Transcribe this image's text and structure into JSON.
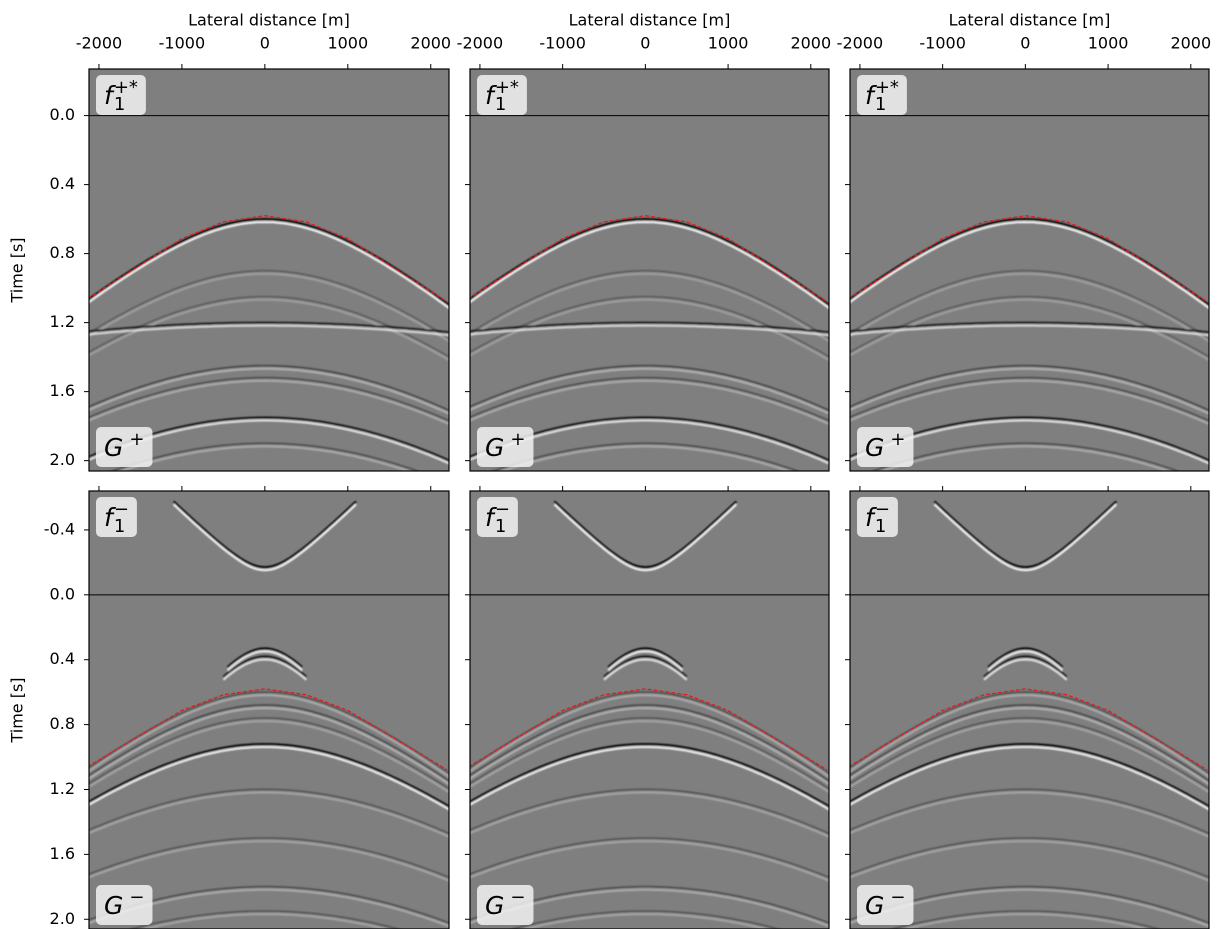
{
  "chart_data": [
    {
      "type": "image",
      "xlabel": "Lateral distance [m]",
      "ylabel": "Time [s]",
      "show_xticklabels": true,
      "show_yticklabels": true,
      "xlim": [
        -2120,
        2220
      ],
      "xticks": [
        -2000,
        -1000,
        0,
        1000,
        2000
      ],
      "ylim": [
        -0.27,
        2.06
      ],
      "y_inverted": true,
      "yticks": [
        {
          "value": 0,
          "label": "0.0"
        },
        0.4,
        0.8,
        1.2,
        1.6,
        {
          "value": 2,
          "label": "2.0"
        }
      ],
      "hline": 0,
      "panel_labels": [
        {
          "base": "f",
          "sub": "1",
          "sup": "+*"
        },
        {
          "base": "G",
          "sup": "+"
        }
      ],
      "reference_line": {
        "x": [
          -2200,
          -1000,
          -500,
          0,
          500,
          1000,
          2200
        ],
        "y": [
          1.08,
          0.713,
          0.616,
          0.58,
          0.616,
          0.713,
          1.08
        ],
        "color": "#e41a1c",
        "dashed": true
      }
    },
    {
      "type": "image",
      "xlabel": "Lateral distance [m]",
      "show_xticklabels": true,
      "show_yticklabels": false,
      "xlim": [
        -2120,
        2220
      ],
      "xticks": [
        -2000,
        -1000,
        0,
        1000,
        2000
      ],
      "ylim": [
        -0.27,
        2.06
      ],
      "y_inverted": true,
      "yticks": [
        0,
        0.4,
        0.8,
        1.2,
        1.6,
        2
      ],
      "hline": 0,
      "panel_labels": [
        {
          "base": "f",
          "sub": "1",
          "sup": "+*"
        },
        {
          "base": "G",
          "sup": "+"
        }
      ],
      "reference_line": {
        "x": [
          -2200,
          -1000,
          -500,
          0,
          500,
          1000,
          2200
        ],
        "y": [
          1.08,
          0.713,
          0.616,
          0.58,
          0.616,
          0.713,
          1.08
        ],
        "color": "#e41a1c",
        "dashed": true
      }
    },
    {
      "type": "image",
      "xlabel": "Lateral distance [m]",
      "show_xticklabels": true,
      "show_yticklabels": false,
      "xlim": [
        -2120,
        2220
      ],
      "xticks": [
        -2000,
        -1000,
        0,
        1000,
        2000
      ],
      "ylim": [
        -0.27,
        2.06
      ],
      "y_inverted": true,
      "yticks": [
        0,
        0.4,
        0.8,
        1.2,
        1.6,
        2
      ],
      "hline": 0,
      "panel_labels": [
        {
          "base": "f",
          "sub": "1",
          "sup": "+*"
        },
        {
          "base": "G",
          "sup": "+"
        }
      ],
      "reference_line": {
        "x": [
          -2200,
          -1000,
          -500,
          0,
          500,
          1000,
          2200
        ],
        "y": [
          1.08,
          0.713,
          0.616,
          0.58,
          0.616,
          0.713,
          1.08
        ],
        "color": "#e41a1c",
        "dashed": true
      }
    },
    {
      "type": "image",
      "ylabel": "Time [s]",
      "show_xticklabels": false,
      "show_yticklabels": true,
      "xlim": [
        -2120,
        2220
      ],
      "xticks": [
        -2000,
        -1000,
        0,
        1000,
        2000
      ],
      "ylim": [
        -0.64,
        2.06
      ],
      "y_inverted": true,
      "yticks": [
        -0.4,
        {
          "value": 0,
          "label": "0.0"
        },
        0.4,
        0.8,
        1.2,
        1.6,
        {
          "value": 2,
          "label": "2.0"
        }
      ],
      "hline": 0,
      "panel_labels": [
        {
          "base": "f",
          "sub": "1",
          "sup": "−"
        },
        {
          "base": "G",
          "sup": "−"
        }
      ],
      "reference_line": {
        "x": [
          -2200,
          -1000,
          -500,
          0,
          500,
          1000,
          2200
        ],
        "y": [
          1.08,
          0.713,
          0.616,
          0.58,
          0.616,
          0.713,
          1.08
        ],
        "color": "#e41a1c",
        "dashed": true
      }
    },
    {
      "type": "image",
      "show_xticklabels": false,
      "show_yticklabels": false,
      "xlim": [
        -2120,
        2220
      ],
      "xticks": [
        -2000,
        -1000,
        0,
        1000,
        2000
      ],
      "ylim": [
        -0.64,
        2.06
      ],
      "y_inverted": true,
      "yticks": [
        -0.4,
        0,
        0.4,
        0.8,
        1.2,
        1.6,
        2
      ],
      "hline": 0,
      "panel_labels": [
        {
          "base": "f",
          "sub": "1",
          "sup": "−"
        },
        {
          "base": "G",
          "sup": "−"
        }
      ],
      "reference_line": {
        "x": [
          -2200,
          -1000,
          -500,
          0,
          500,
          1000,
          2200
        ],
        "y": [
          1.08,
          0.713,
          0.616,
          0.58,
          0.616,
          0.713,
          1.08
        ],
        "color": "#e41a1c",
        "dashed": true
      }
    },
    {
      "type": "image",
      "show_xticklabels": false,
      "show_yticklabels": false,
      "xlim": [
        -2120,
        2220
      ],
      "xticks": [
        -2000,
        -1000,
        0,
        1000,
        2000
      ],
      "ylim": [
        -0.64,
        2.06
      ],
      "y_inverted": true,
      "yticks": [
        -0.4,
        0,
        0.4,
        0.8,
        1.2,
        1.6,
        2
      ],
      "hline": 0,
      "panel_labels": [
        {
          "base": "f",
          "sub": "1",
          "sup": "−"
        },
        {
          "base": "G",
          "sup": "−"
        }
      ],
      "reference_line": {
        "x": [
          -2200,
          -1000,
          -500,
          0,
          500,
          1000,
          2200
        ],
        "y": [
          1.08,
          0.713,
          0.616,
          0.58,
          0.616,
          0.713,
          1.08
        ],
        "color": "#e41a1c",
        "dashed": true
      }
    }
  ]
}
